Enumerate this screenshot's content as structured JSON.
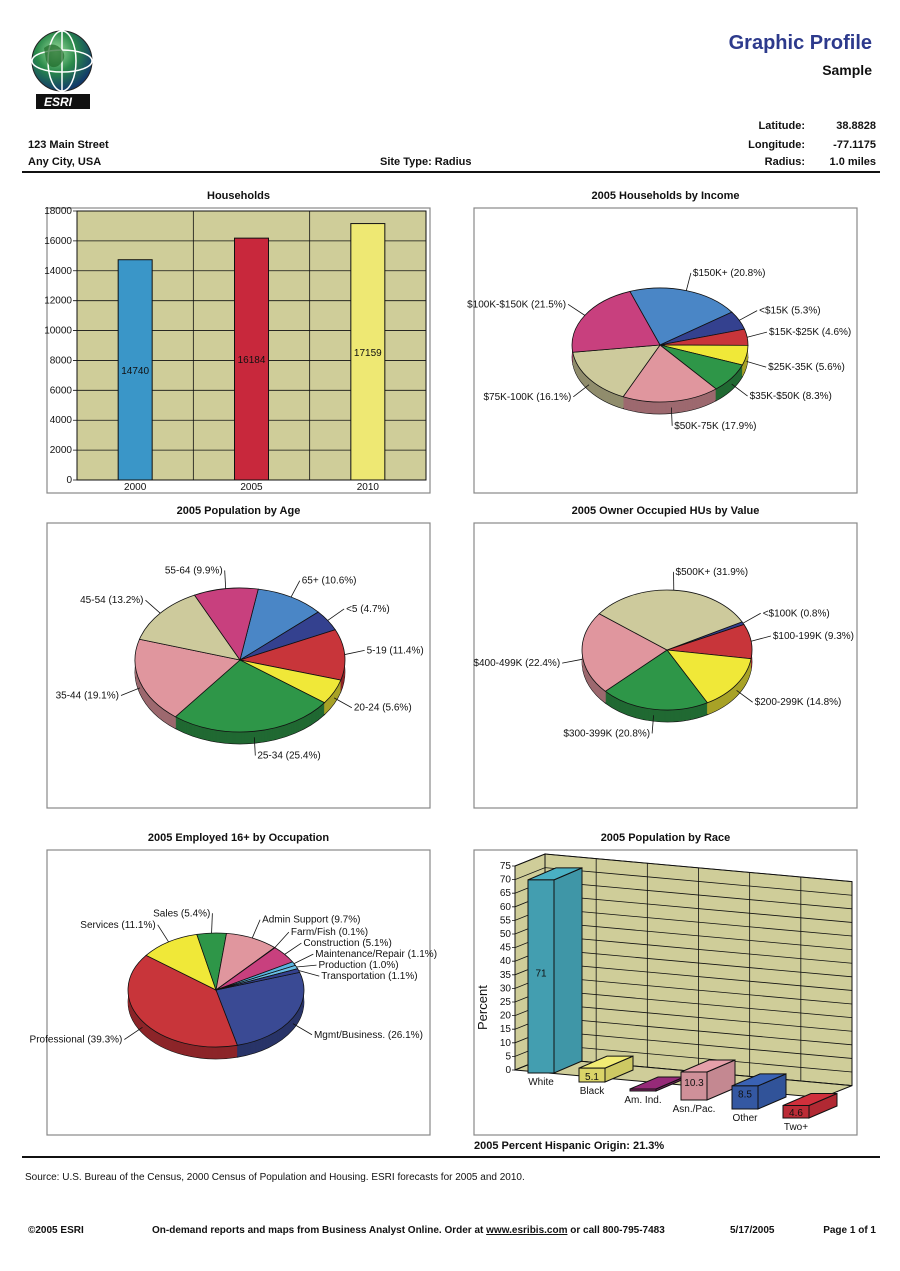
{
  "header": {
    "title": "Graphic Profile",
    "subtitle": "Sample",
    "logo_text": "ESRI",
    "address_line1": "123 Main Street",
    "address_line2": "Any City, USA",
    "site_type": "Site Type:  Radius",
    "latitude_label": "Latitude:",
    "latitude_value": "38.8828",
    "longitude_label": "Longitude:",
    "longitude_value": "-77.1175",
    "radius_label": "Radius:",
    "radius_value": "1.0 miles"
  },
  "colors": {
    "title": "#2d3a8c",
    "chart_bg": "#cfcd99"
  },
  "chart_data": [
    {
      "id": "households",
      "type": "bar",
      "title": "Households",
      "categories": [
        "2000",
        "2005",
        "2010"
      ],
      "values": [
        14740,
        16184,
        17159
      ],
      "data_labels": [
        "14740",
        "16184",
        "17159"
      ],
      "ylim": [
        0,
        18000
      ],
      "yticks": [
        "0",
        "2000",
        "4000",
        "6000",
        "8000",
        "10000",
        "12000",
        "14000",
        "16000",
        "18000"
      ],
      "colors": [
        "#3a96c8",
        "#c8283c",
        "#eee873"
      ],
      "grid": true
    },
    {
      "id": "income",
      "type": "pie",
      "title": "2005 Households by Income",
      "labels": [
        "$150K+ (20.8%)",
        "<$15K (5.3%)",
        "$15K-$25K (4.6%)",
        "$25K-35K (5.6%)",
        "$35K-$50K (8.3%)",
        "$50K-75K (17.9%)",
        "$75K-100K (16.1%)",
        "$100K-$150K (21.5%)"
      ],
      "values": [
        20.8,
        5.3,
        4.6,
        5.6,
        8.3,
        17.9,
        16.1,
        21.5
      ],
      "colors": [
        "#4a86c6",
        "#34418f",
        "#c8353a",
        "#f0e838",
        "#2e9648",
        "#e0969e",
        "#cdca9c",
        "#c8407e"
      ]
    },
    {
      "id": "age",
      "type": "pie",
      "title": "2005 Population by Age",
      "labels": [
        "65+ (10.6%)",
        "<5 (4.7%)",
        "5-19 (11.4%)",
        "20-24 (5.6%)",
        "25-34 (25.4%)",
        "35-44 (19.1%)",
        "45-54 (13.2%)",
        "55-64 (9.9%)"
      ],
      "values": [
        10.6,
        4.7,
        11.4,
        5.6,
        25.4,
        19.1,
        13.2,
        9.9
      ],
      "colors": [
        "#4a86c6",
        "#34418f",
        "#c8353a",
        "#f0e838",
        "#2e9648",
        "#e0969e",
        "#cdca9c",
        "#c8407e"
      ]
    },
    {
      "id": "value",
      "type": "pie",
      "title": "2005 Owner Occupied HUs by Value",
      "labels": [
        "<$100K (0.8%)",
        "$100-199K (9.3%)",
        "$200-299K (14.8%)",
        "$300-399K (20.8%)",
        "$400-499K (22.4%)",
        "$500K+ (31.9%)"
      ],
      "values": [
        0.8,
        9.3,
        14.8,
        20.8,
        22.4,
        31.9
      ],
      "colors": [
        "#34418f",
        "#c8353a",
        "#f0e838",
        "#2e9648",
        "#e0969e",
        "#cdca9c"
      ]
    },
    {
      "id": "occupation",
      "type": "pie",
      "title": "2005 Employed 16+ by Occupation",
      "labels": [
        "Mgmt/Business. (26.1%)",
        "Professional (39.3%)",
        "Services (11.1%)",
        "Sales (5.4%)",
        "Admin Support (9.7%)",
        "Farm/Fish (0.1%)",
        "Construction (5.1%)",
        "Maintenance/Repair (1.1%)",
        "Production (1.0%)",
        "Transportation (1.1%)"
      ],
      "values": [
        26.1,
        39.3,
        11.1,
        5.4,
        9.7,
        0.1,
        5.1,
        1.1,
        1.0,
        1.1
      ],
      "colors": [
        "#3a4a94",
        "#c8353a",
        "#f0e838",
        "#2e9648",
        "#e0969e",
        "#6a9a50",
        "#c8407e",
        "#5ab4e0",
        "#6ac0e8",
        "#34418f"
      ]
    },
    {
      "id": "race",
      "type": "bar",
      "subtype": "3d",
      "title": "2005 Population by Race",
      "ylabel": "Percent",
      "categories": [
        "White",
        "Black",
        "Am. Ind.",
        "Asn./Pac.",
        "Other",
        "Two+"
      ],
      "values": [
        71,
        5.1,
        0.5,
        10.3,
        8.5,
        4.6
      ],
      "data_labels": [
        "71",
        "5.1",
        "",
        "10.3",
        "8.5",
        "4.6"
      ],
      "ylim": [
        0,
        75
      ],
      "yticks": [
        "0",
        "5",
        "10",
        "15",
        "20",
        "25",
        "30",
        "35",
        "40",
        "45",
        "50",
        "55",
        "60",
        "65",
        "70",
        "75"
      ],
      "colors": [
        "#4ab0c4",
        "#f2ec74",
        "#962a78",
        "#e6a0aa",
        "#3a62b4",
        "#d0303c"
      ],
      "grid": true
    }
  ],
  "hispanic_note": "2005 Percent Hispanic Origin: 21.3%",
  "footer": {
    "source": "Source: U.S. Bureau of the Census, 2000 Census of Population and Housing. ESRI forecasts for 2005 and 2010.",
    "copyright": "©2005 ESRI",
    "promo_prefix": "On-demand reports and maps from Business Analyst Online. Order at ",
    "promo_link": "www.esribis.com",
    "promo_suffix": " or call 800-795-7483",
    "date": "5/17/2005",
    "page": "Page 1 of 1"
  }
}
